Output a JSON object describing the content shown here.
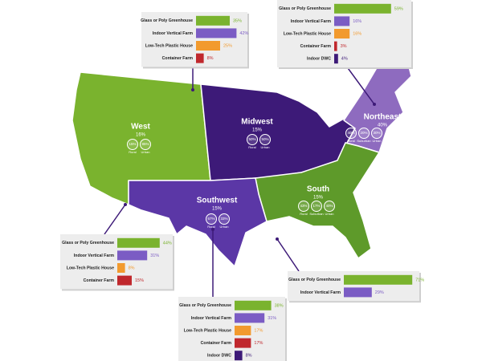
{
  "regions": [
    {
      "name": "West",
      "share": "16%",
      "color": "#7ab32e",
      "segments": [
        {
          "value": "15%",
          "label": "Rural"
        },
        {
          "value": "85%",
          "label": "Urban"
        }
      ],
      "bars": {
        "labels": [
          "Glass or Poly Greenhouse",
          "Indoor Vertical Farm",
          "Low-Tech Plastic House",
          "Container Farm"
        ],
        "values": [
          44,
          31,
          8,
          15
        ],
        "value_labels": [
          "44%",
          "31%",
          "8%",
          "15%"
        ],
        "colors": [
          "#7ab32e",
          "#7b5cc4",
          "#f29a2e",
          "#c0282d"
        ]
      }
    },
    {
      "name": "Midwest",
      "share": "15%",
      "color": "#3d1a78",
      "segments": [
        {
          "value": "50%",
          "label": "Rural"
        },
        {
          "value": "50%",
          "label": "Urban"
        }
      ],
      "bars": {
        "labels": [
          "Glass or Poly Greenhouse",
          "Indoor Vertical Farm",
          "Low-Tech Plastic House",
          "Container Farm"
        ],
        "values": [
          35,
          42,
          25,
          8
        ],
        "value_labels": [
          "35%",
          "42%",
          "25%",
          "8%"
        ],
        "colors": [
          "#7ab32e",
          "#7b5cc4",
          "#f29a2e",
          "#c0282d"
        ]
      }
    },
    {
      "name": "Northeast",
      "share": "40%",
      "color": "#8e6bbf",
      "segments": [
        {
          "value": "40%",
          "label": "Rural"
        },
        {
          "value": "20%",
          "label": "Suburban"
        },
        {
          "value": "30%",
          "label": "Urban"
        }
      ],
      "bars": {
        "labels": [
          "Glass or Poly Greenhouse",
          "Indoor Vertical Farm",
          "Low-Tech Plastic House",
          "Container Farm",
          "Indoor DWC"
        ],
        "values": [
          59,
          16,
          16,
          3,
          4
        ],
        "value_labels": [
          "59%",
          "16%",
          "16%",
          "3%",
          "4%"
        ],
        "colors": [
          "#7ab32e",
          "#7b5cc4",
          "#f29a2e",
          "#c0282d",
          "#3d1a78"
        ]
      }
    },
    {
      "name": "South",
      "share": "15%",
      "color": "#5e9a2a",
      "segments": [
        {
          "value": "43%",
          "label": "Rural"
        },
        {
          "value": "17%",
          "label": "Suburban"
        },
        {
          "value": "40%",
          "label": "Urban"
        }
      ],
      "bars": {
        "labels": [
          "Glass or Poly Greenhouse",
          "Indoor Vertical Farm"
        ],
        "values": [
          71,
          29
        ],
        "value_labels": [
          "71%",
          "29%"
        ],
        "colors": [
          "#7ab32e",
          "#7b5cc4"
        ]
      }
    },
    {
      "name": "Southwest",
      "share": "15%",
      "color": "#5b37a6",
      "segments": [
        {
          "value": "67%",
          "label": "Rural"
        },
        {
          "value": "33%",
          "label": "Urban"
        }
      ],
      "bars": {
        "labels": [
          "Glass or Poly Greenhouse",
          "Indoor Vertical Farm",
          "Low-Tech Plastic House",
          "Container Farm",
          "Indoor DWC"
        ],
        "values": [
          38,
          31,
          17,
          17,
          8
        ],
        "value_labels": [
          "38%",
          "31%",
          "17%",
          "17%",
          "8%"
        ],
        "colors": [
          "#7ab32e",
          "#7b5cc4",
          "#f29a2e",
          "#c0282d",
          "#3d1a78"
        ]
      }
    }
  ]
}
